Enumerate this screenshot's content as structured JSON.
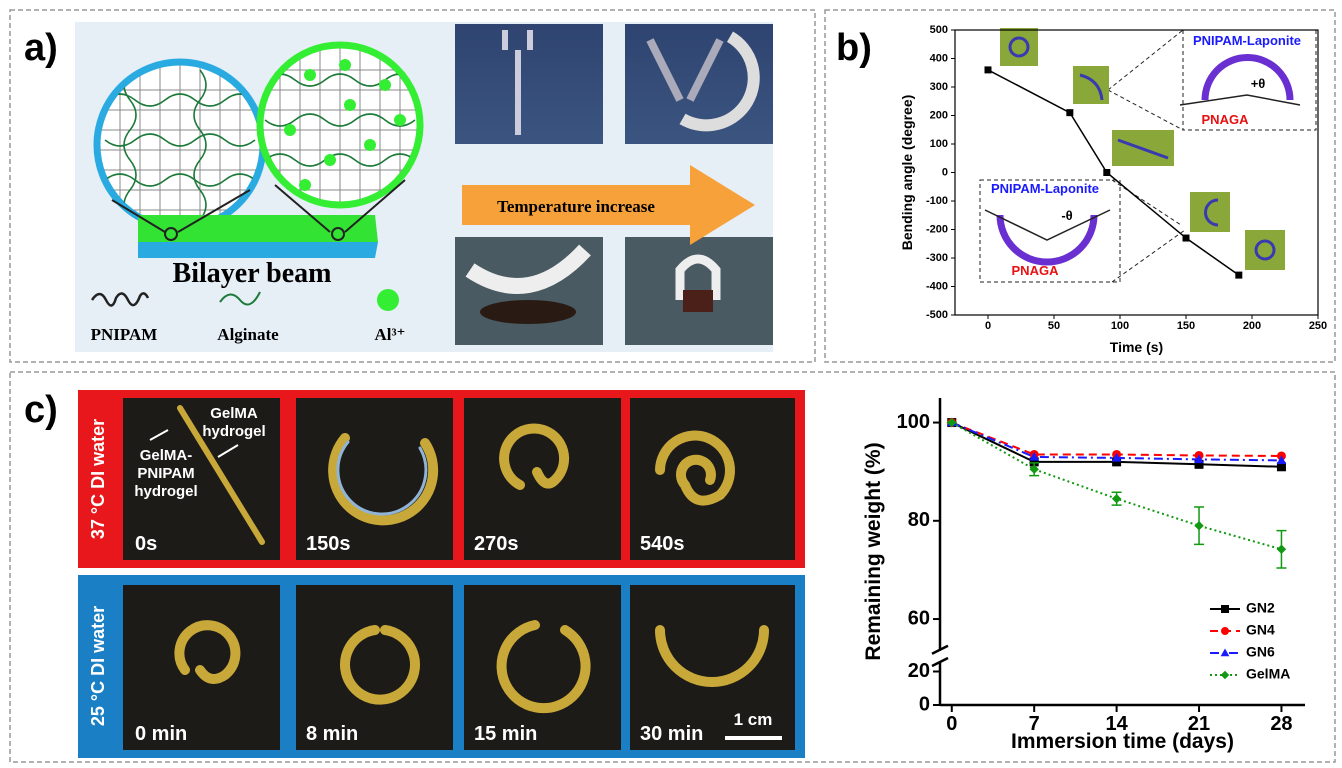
{
  "panel_labels": [
    "a)",
    "b)",
    "c)"
  ],
  "panel_a": {
    "beam_label": "Bilayer beam",
    "legend": [
      "PNIPAM",
      "Alginate",
      "Al³⁺"
    ],
    "arrow_label": "Temperature increase"
  },
  "panel_c_photos": {
    "row_labels": [
      "37 °C DI water",
      "25 °C DI water"
    ],
    "row1_times": [
      "0s",
      "150s",
      "270s",
      "540s"
    ],
    "row2_times": [
      "0 min",
      "8 min",
      "15 min",
      "30 min"
    ],
    "sample_labels": [
      [
        "GelMA",
        "hydrogel"
      ],
      [
        "GelMA-",
        "PNIPAM",
        "hydrogel"
      ]
    ],
    "scale_bar": "1 cm"
  },
  "chart_data": [
    {
      "type": "line",
      "x": [
        0,
        62,
        90,
        150,
        190
      ],
      "values": [
        360,
        210,
        0,
        -230,
        -360
      ],
      "color": "#000000",
      "marker": "square",
      "box": true,
      "xlabel": "Time (s)",
      "ylabel": "Bending angle (degree)",
      "xlim": [
        -25,
        250
      ],
      "ylim": [
        -500,
        500
      ],
      "xticks": [
        0,
        50,
        100,
        150,
        200,
        250
      ],
      "yticks": [
        -500,
        -400,
        -300,
        -200,
        -100,
        0,
        100,
        200,
        300,
        400,
        500
      ],
      "annotations": [
        "PNIPAM-Laponite",
        "PNAGA",
        "+θ",
        "PNIPAM-Laponite",
        "PNAGA",
        "-θ"
      ]
    },
    {
      "type": "line",
      "x": [
        0,
        7,
        14,
        21,
        28
      ],
      "series": [
        {
          "name": "GN2",
          "color": "#000000",
          "marker": "square",
          "linestyle": "solid",
          "values": [
            100,
            92,
            92,
            91.5,
            91
          ]
        },
        {
          "name": "GN4",
          "color": "#ff0000",
          "marker": "circle",
          "linestyle": "dashed",
          "values": [
            100,
            93.5,
            93.5,
            93.3,
            93.2
          ]
        },
        {
          "name": "GN6",
          "color": "#1a1aff",
          "marker": "triangle",
          "linestyle": "dashdot",
          "values": [
            100,
            93,
            92.8,
            92.5,
            92.3
          ]
        },
        {
          "name": "GelMA",
          "color": "#119911",
          "marker": "diamond",
          "linestyle": "dotted",
          "values": [
            100,
            90.5,
            84.5,
            79,
            74.2
          ],
          "errors": [
            0,
            1.3,
            1.3,
            3.8,
            3.8
          ]
        }
      ],
      "xlabel": "Immersion time (days)",
      "ylabel": "Remaining weight (%)",
      "xlim": [
        -1,
        30
      ],
      "ylim": [
        0,
        105
      ],
      "ybreak": [
        22,
        55
      ],
      "xticks": [
        0,
        7,
        14,
        21,
        28
      ],
      "yticks": [
        0,
        20,
        60,
        80,
        100
      ],
      "legend": "lower right"
    }
  ]
}
